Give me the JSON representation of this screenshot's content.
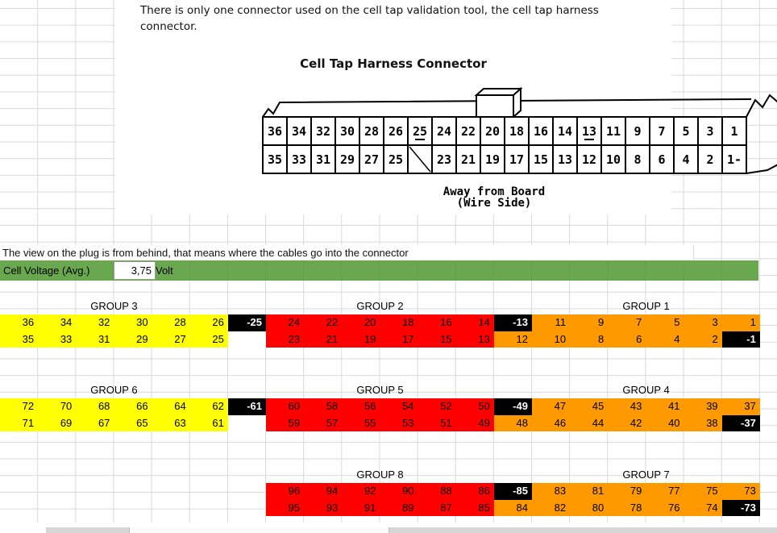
{
  "intro": {
    "text": "There is only one connector used on the cell tap validation tool, the cell tap harness connector."
  },
  "diagram": {
    "title": "Cell Tap Harness Connector",
    "caption_line1": "Away from Board",
    "caption_line2": "(Wire Side)",
    "pins_top": [
      {
        "label": "36"
      },
      {
        "label": "34"
      },
      {
        "label": "32"
      },
      {
        "label": "30"
      },
      {
        "label": "28"
      },
      {
        "label": "26"
      },
      {
        "label": "25",
        "underline": true
      },
      {
        "label": "24"
      },
      {
        "label": "22"
      },
      {
        "label": "20"
      },
      {
        "label": "18"
      },
      {
        "label": "16"
      },
      {
        "label": "14"
      },
      {
        "label": "13",
        "underline": true
      },
      {
        "label": "11"
      },
      {
        "label": "9"
      },
      {
        "label": "7"
      },
      {
        "label": "5"
      },
      {
        "label": "3"
      },
      {
        "label": "1"
      }
    ],
    "pins_bottom": [
      {
        "label": "35"
      },
      {
        "label": "33"
      },
      {
        "label": "31"
      },
      {
        "label": "29"
      },
      {
        "label": "27"
      },
      {
        "label": "25"
      },
      {
        "label": "",
        "slash": true
      },
      {
        "label": "23"
      },
      {
        "label": "21"
      },
      {
        "label": "19"
      },
      {
        "label": "17"
      },
      {
        "label": "15"
      },
      {
        "label": "13"
      },
      {
        "label": "12"
      },
      {
        "label": "10"
      },
      {
        "label": "8"
      },
      {
        "label": "6"
      },
      {
        "label": "4"
      },
      {
        "label": "2"
      },
      {
        "label": "1-"
      }
    ]
  },
  "note": "The view on the plug is from behind, that means where the cables go into the connector",
  "voltage": {
    "label": "Cell Voltage (Avg.)",
    "value": "3,75",
    "unit": "Volt"
  },
  "colors": {
    "yellow": "#ffff00",
    "red": "#ff0000",
    "orange": "#ff9900",
    "black": "#000000",
    "green_bar": "#6aa84f"
  },
  "tables": [
    {
      "headers": [
        {
          "label": "GROUP 3",
          "start": 1,
          "span": 6
        },
        {
          "label": "GROUP 2",
          "start": 8,
          "span": 6
        },
        {
          "label": "GROUP 1",
          "start": 15,
          "span": 6
        }
      ],
      "rows": [
        [
          {
            "v": "36",
            "c": "y"
          },
          {
            "v": "34",
            "c": "y"
          },
          {
            "v": "32",
            "c": "y"
          },
          {
            "v": "30",
            "c": "y"
          },
          {
            "v": "28",
            "c": "y"
          },
          {
            "v": "26",
            "c": "y"
          },
          {
            "v": "-25",
            "c": "k"
          },
          {
            "v": "24",
            "c": "r"
          },
          {
            "v": "22",
            "c": "r"
          },
          {
            "v": "20",
            "c": "r"
          },
          {
            "v": "18",
            "c": "r"
          },
          {
            "v": "16",
            "c": "r"
          },
          {
            "v": "14",
            "c": "r"
          },
          {
            "v": "-13",
            "c": "k"
          },
          {
            "v": "11",
            "c": "o"
          },
          {
            "v": "9",
            "c": "o"
          },
          {
            "v": "7",
            "c": "o"
          },
          {
            "v": "5",
            "c": "o"
          },
          {
            "v": "3",
            "c": "o"
          },
          {
            "v": "1",
            "c": "o"
          }
        ],
        [
          {
            "v": "35",
            "c": "y"
          },
          {
            "v": "33",
            "c": "y"
          },
          {
            "v": "31",
            "c": "y"
          },
          {
            "v": "29",
            "c": "y"
          },
          {
            "v": "27",
            "c": "y"
          },
          {
            "v": "25",
            "c": "y"
          },
          {
            "v": "",
            "c": "w"
          },
          {
            "v": "23",
            "c": "r"
          },
          {
            "v": "21",
            "c": "r"
          },
          {
            "v": "19",
            "c": "r"
          },
          {
            "v": "17",
            "c": "r"
          },
          {
            "v": "15",
            "c": "r"
          },
          {
            "v": "13",
            "c": "r"
          },
          {
            "v": "12",
            "c": "o"
          },
          {
            "v": "10",
            "c": "o"
          },
          {
            "v": "8",
            "c": "o"
          },
          {
            "v": "6",
            "c": "o"
          },
          {
            "v": "4",
            "c": "o"
          },
          {
            "v": "2",
            "c": "o"
          },
          {
            "v": "-1",
            "c": "k"
          }
        ]
      ]
    },
    {
      "headers": [
        {
          "label": "GROUP 6",
          "start": 1,
          "span": 6
        },
        {
          "label": "GROUP 5",
          "start": 8,
          "span": 6
        },
        {
          "label": "GROUP 4",
          "start": 15,
          "span": 6
        }
      ],
      "rows": [
        [
          {
            "v": "72",
            "c": "y"
          },
          {
            "v": "70",
            "c": "y"
          },
          {
            "v": "68",
            "c": "y"
          },
          {
            "v": "66",
            "c": "y"
          },
          {
            "v": "64",
            "c": "y"
          },
          {
            "v": "62",
            "c": "y"
          },
          {
            "v": "-61",
            "c": "k"
          },
          {
            "v": "60",
            "c": "r"
          },
          {
            "v": "58",
            "c": "r"
          },
          {
            "v": "56",
            "c": "r"
          },
          {
            "v": "54",
            "c": "r"
          },
          {
            "v": "52",
            "c": "r"
          },
          {
            "v": "50",
            "c": "r"
          },
          {
            "v": "-49",
            "c": "k"
          },
          {
            "v": "47",
            "c": "o"
          },
          {
            "v": "45",
            "c": "o"
          },
          {
            "v": "43",
            "c": "o"
          },
          {
            "v": "41",
            "c": "o"
          },
          {
            "v": "39",
            "c": "o"
          },
          {
            "v": "37",
            "c": "o"
          }
        ],
        [
          {
            "v": "71",
            "c": "y"
          },
          {
            "v": "69",
            "c": "y"
          },
          {
            "v": "67",
            "c": "y"
          },
          {
            "v": "65",
            "c": "y"
          },
          {
            "v": "63",
            "c": "y"
          },
          {
            "v": "61",
            "c": "y"
          },
          {
            "v": "",
            "c": "w"
          },
          {
            "v": "59",
            "c": "r"
          },
          {
            "v": "57",
            "c": "r"
          },
          {
            "v": "55",
            "c": "r"
          },
          {
            "v": "53",
            "c": "r"
          },
          {
            "v": "51",
            "c": "r"
          },
          {
            "v": "49",
            "c": "r"
          },
          {
            "v": "48",
            "c": "o"
          },
          {
            "v": "46",
            "c": "o"
          },
          {
            "v": "44",
            "c": "o"
          },
          {
            "v": "42",
            "c": "o"
          },
          {
            "v": "40",
            "c": "o"
          },
          {
            "v": "38",
            "c": "o"
          },
          {
            "v": "-37",
            "c": "k"
          }
        ]
      ]
    },
    {
      "headers": [
        {
          "label": "GROUP 8",
          "start": 8,
          "span": 6
        },
        {
          "label": "GROUP 7",
          "start": 15,
          "span": 6
        }
      ],
      "rows": [
        [
          {
            "v": "",
            "c": "g"
          },
          {
            "v": "",
            "c": "g"
          },
          {
            "v": "",
            "c": "g"
          },
          {
            "v": "",
            "c": "g"
          },
          {
            "v": "",
            "c": "g"
          },
          {
            "v": "",
            "c": "g"
          },
          {
            "v": "",
            "c": "g"
          },
          {
            "v": "96",
            "c": "r"
          },
          {
            "v": "94",
            "c": "r"
          },
          {
            "v": "92",
            "c": "r"
          },
          {
            "v": "90",
            "c": "r"
          },
          {
            "v": "88",
            "c": "r"
          },
          {
            "v": "86",
            "c": "r"
          },
          {
            "v": "-85",
            "c": "k"
          },
          {
            "v": "83",
            "c": "o"
          },
          {
            "v": "81",
            "c": "o"
          },
          {
            "v": "79",
            "c": "o"
          },
          {
            "v": "77",
            "c": "o"
          },
          {
            "v": "75",
            "c": "o"
          },
          {
            "v": "73",
            "c": "o"
          }
        ],
        [
          {
            "v": "",
            "c": "g"
          },
          {
            "v": "",
            "c": "g"
          },
          {
            "v": "",
            "c": "g"
          },
          {
            "v": "",
            "c": "g"
          },
          {
            "v": "",
            "c": "g"
          },
          {
            "v": "",
            "c": "g"
          },
          {
            "v": "",
            "c": "g"
          },
          {
            "v": "95",
            "c": "r"
          },
          {
            "v": "93",
            "c": "r"
          },
          {
            "v": "91",
            "c": "r"
          },
          {
            "v": "89",
            "c": "r"
          },
          {
            "v": "87",
            "c": "r"
          },
          {
            "v": "85",
            "c": "r"
          },
          {
            "v": "84",
            "c": "o"
          },
          {
            "v": "82",
            "c": "o"
          },
          {
            "v": "80",
            "c": "o"
          },
          {
            "v": "78",
            "c": "o"
          },
          {
            "v": "76",
            "c": "o"
          },
          {
            "v": "74",
            "c": "o"
          },
          {
            "v": "-73",
            "c": "k"
          }
        ]
      ]
    }
  ]
}
